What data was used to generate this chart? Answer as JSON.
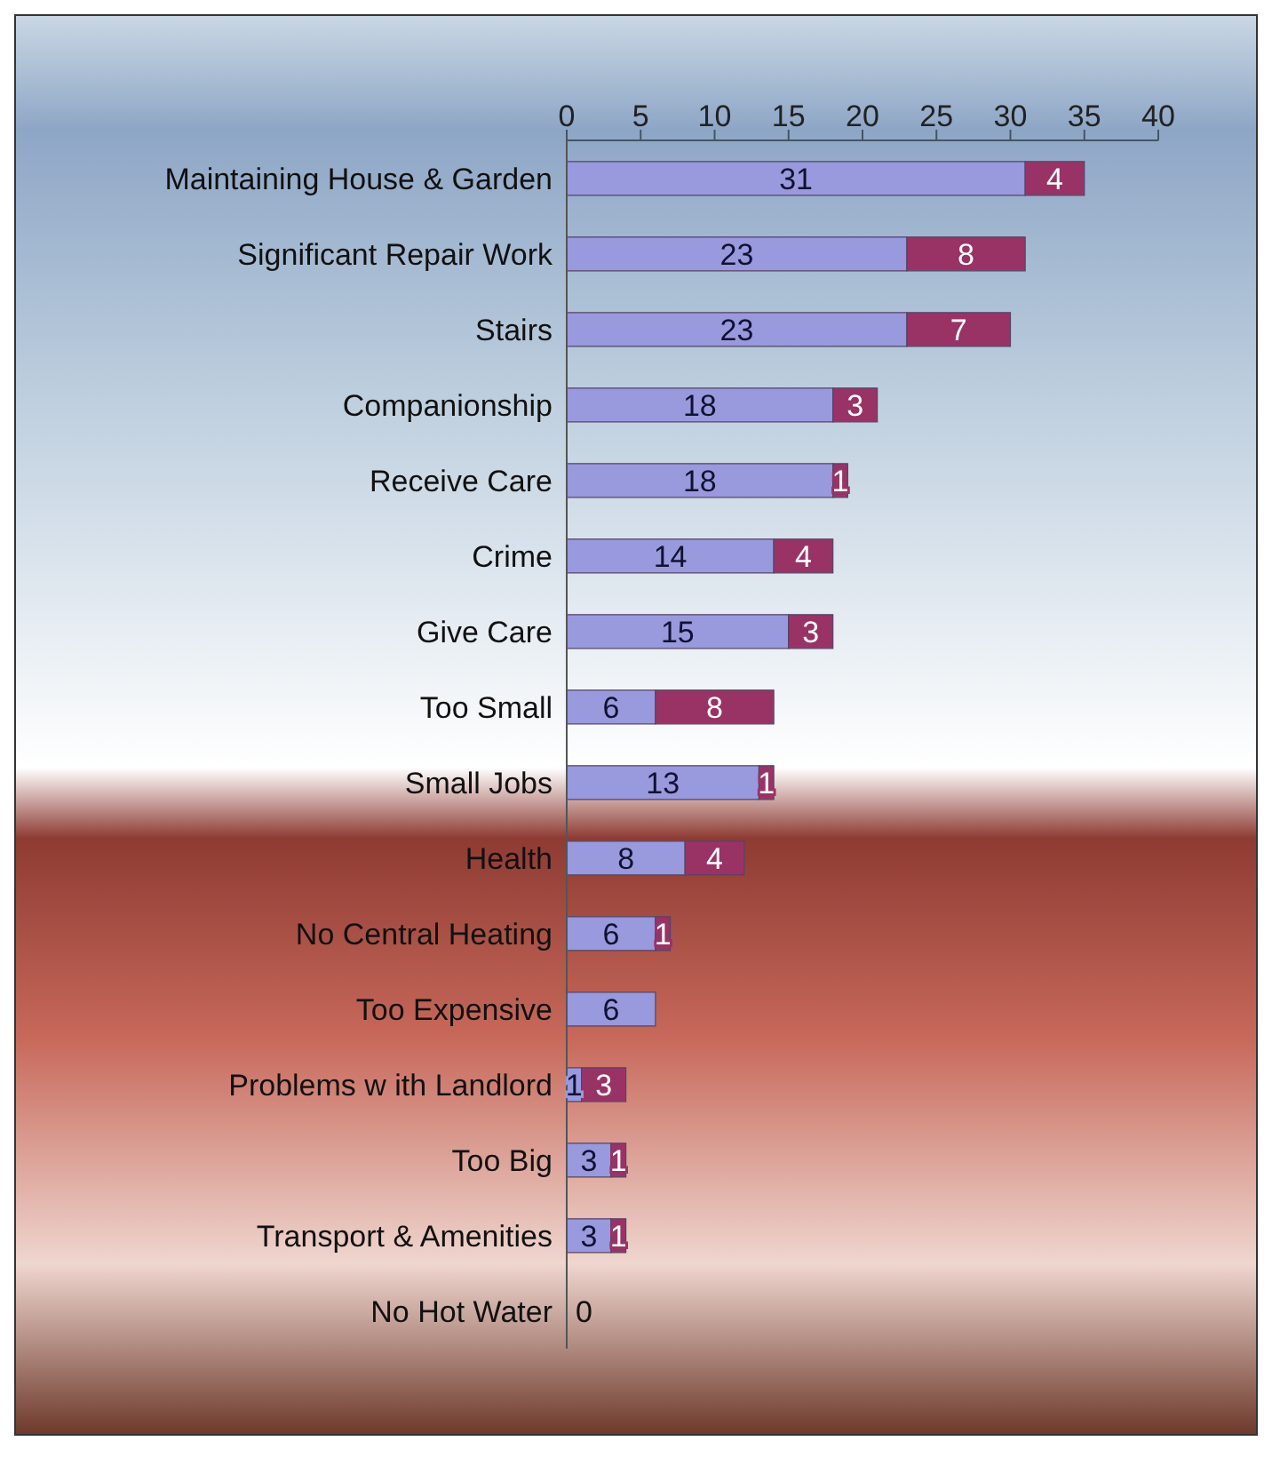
{
  "chart_data": {
    "type": "bar",
    "orientation": "horizontal",
    "stacked": true,
    "categories": [
      "Maintaining House & Garden",
      "Significant Repair Work",
      "Stairs",
      "Companionship",
      "Receive Care",
      "Crime",
      "Give Care",
      "Too Small",
      "Small Jobs",
      "Health",
      "No Central Heating",
      "Too Expensive",
      "Problems w ith Landlord",
      "Too Big",
      "Transport & Amenities",
      "No Hot Water"
    ],
    "series": [
      {
        "color": "#9999dd",
        "values": [
          31,
          23,
          23,
          18,
          18,
          14,
          15,
          6,
          13,
          8,
          6,
          6,
          1,
          3,
          3,
          0
        ]
      },
      {
        "color": "#993366",
        "values": [
          4,
          8,
          7,
          3,
          1,
          4,
          3,
          8,
          1,
          4,
          1,
          null,
          3,
          1,
          1,
          null
        ]
      }
    ],
    "xlim": [
      0,
      40
    ],
    "xticks": [
      0,
      5,
      10,
      15,
      20,
      25,
      30,
      35,
      40
    ],
    "data_labels": true,
    "grid": false,
    "legend": false
  }
}
